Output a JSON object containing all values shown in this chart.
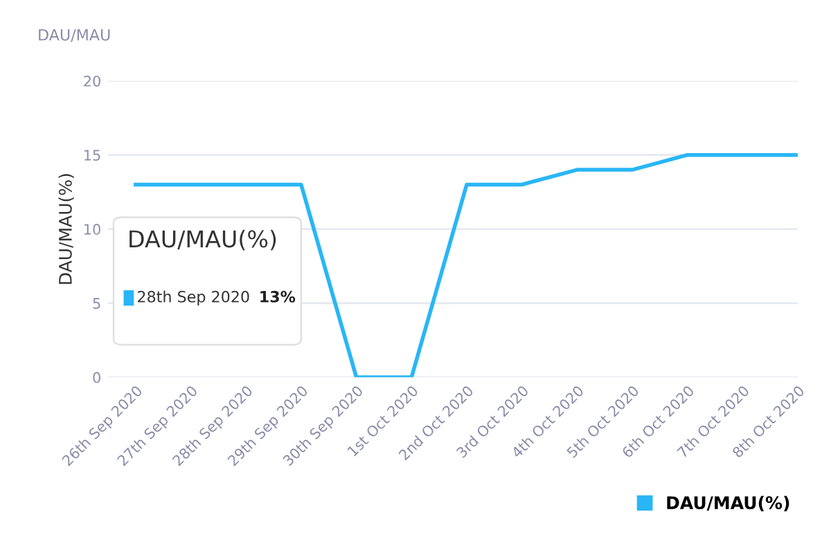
{
  "chart_data": {
    "type": "line",
    "title": "DAU/MAU",
    "ylabel": "DAU/MAU(%)",
    "categories": [
      "26th Sep 2020",
      "27th Sep 2020",
      "28th Sep 2020",
      "29th Sep 2020",
      "30th Sep 2020",
      "1st Oct 2020",
      "2nd Oct 2020",
      "3rd Oct 2020",
      "4th Oct 2020",
      "5th Oct 2020",
      "6th Oct 2020",
      "7th Oct 2020",
      "8th Oct 2020"
    ],
    "series": [
      {
        "name": "DAU/MAU(%)",
        "color": "#29b6f6",
        "values": [
          13,
          13,
          13,
          13,
          0,
          0,
          13,
          13,
          14,
          14,
          15,
          15,
          15
        ]
      }
    ],
    "annotations": [
      "28th Sep 2020",
      "13%"
    ],
    "ylim": [
      0,
      20
    ],
    "yticks": [
      0,
      5,
      10,
      15,
      20
    ],
    "grid": "y",
    "legend": "bottom right",
    "marker": "none",
    "line_style": "solid"
  }
}
